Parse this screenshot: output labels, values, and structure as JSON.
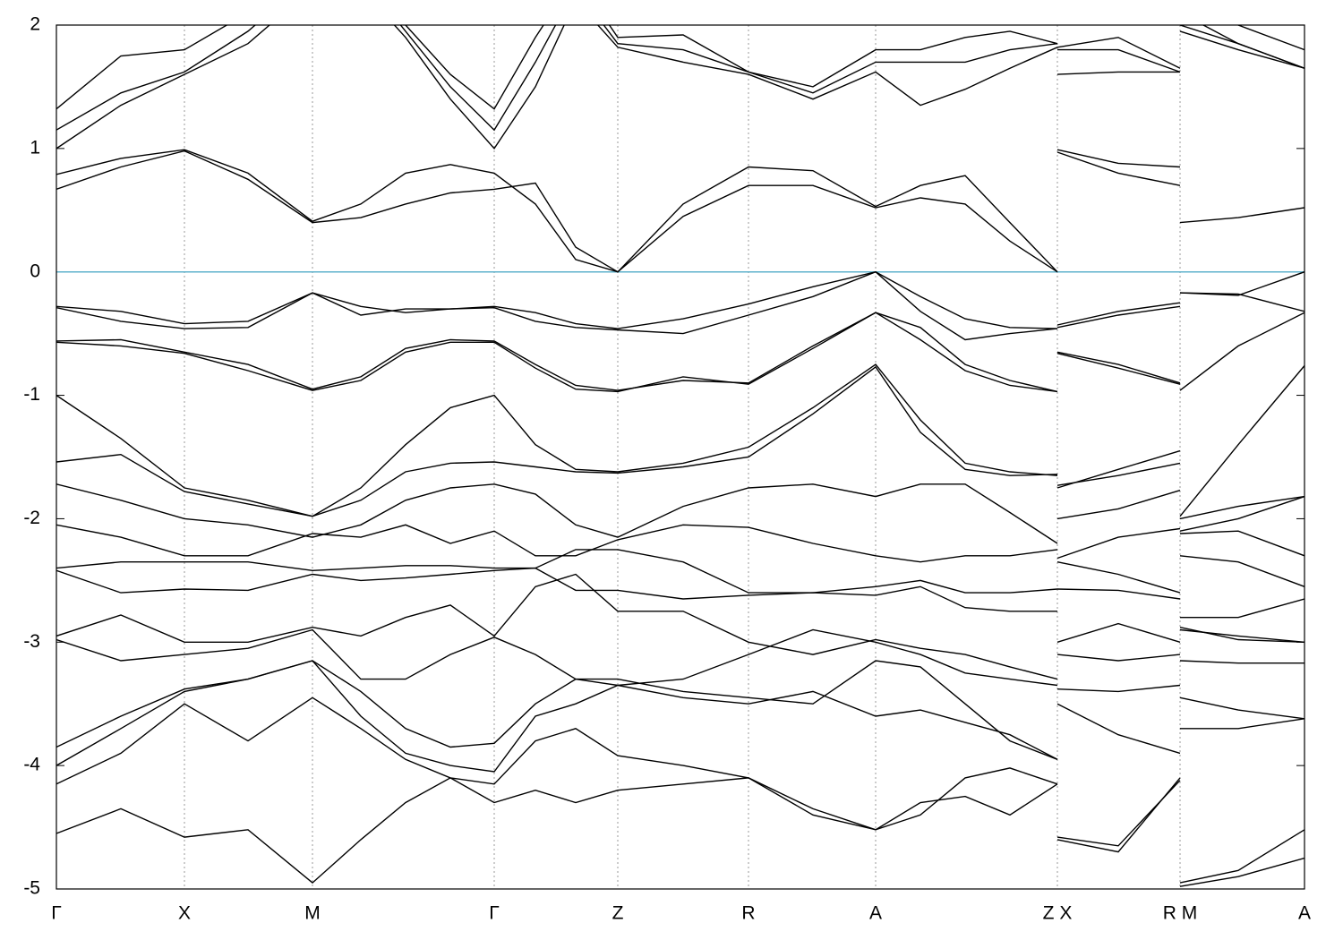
{
  "chart_data": {
    "type": "line",
    "x": [
      0,
      72,
      143,
      214,
      286,
      340,
      390,
      440,
      489,
      535,
      580,
      627,
      700,
      773,
      845,
      915,
      965,
      1015,
      1065,
      1118,
      1118,
      1118,
      1186,
      1255,
      1255,
      1255,
      1320,
      1394
    ],
    "xlim": [
      0,
      1394
    ],
    "xticks": [
      {
        "value": 0,
        "label": "Γ"
      },
      {
        "value": 143,
        "label": "X"
      },
      {
        "value": 286,
        "label": "M"
      },
      {
        "value": 489,
        "label": "Γ"
      },
      {
        "value": 627,
        "label": "Z"
      },
      {
        "value": 773,
        "label": "R"
      },
      {
        "value": 915,
        "label": "A"
      },
      {
        "value": 1118,
        "label": "Z X"
      },
      {
        "value": 1255,
        "label": "R M"
      },
      {
        "value": 1394,
        "label": "A"
      }
    ],
    "ylim": [
      -5,
      2
    ],
    "yticks": [
      -5,
      -4,
      -3,
      -2,
      -1,
      0,
      1,
      2
    ],
    "grid": true,
    "color": "#000000",
    "hline": {
      "value": 0,
      "color": "#5fb2cc"
    },
    "series": [
      {
        "values": [
          0.67,
          0.85,
          0.98,
          0.75,
          0.4,
          0.44,
          0.55,
          0.64,
          0.67,
          0.72,
          0.2,
          0.0,
          0.45,
          0.7,
          0.7,
          0.52,
          0.6,
          0.55,
          0.25,
          0.0,
          null,
          0.97,
          0.8,
          0.7,
          null,
          0.4,
          0.44,
          0.52
        ]
      },
      {
        "values": [
          0.79,
          0.92,
          0.99,
          0.8,
          0.41,
          0.55,
          0.8,
          0.87,
          0.8,
          0.55,
          0.1,
          0.0,
          0.55,
          0.85,
          0.82,
          0.53,
          0.7,
          0.78,
          0.4,
          0.0,
          null,
          0.99,
          0.88,
          0.85,
          null,
          2.0,
          1.85,
          1.65
        ]
      },
      {
        "values": [
          1.0,
          1.35,
          1.6,
          1.85,
          2.3,
          2.3,
          1.9,
          1.4,
          1.0,
          1.5,
          2.2,
          1.82,
          1.7,
          1.6,
          1.4,
          1.62,
          1.35,
          1.48,
          1.65,
          1.82,
          null,
          1.6,
          1.62,
          1.62,
          null,
          1.95,
          1.8,
          1.65
        ]
      },
      {
        "values": [
          1.15,
          1.45,
          1.62,
          1.95,
          2.4,
          2.4,
          1.95,
          1.5,
          1.15,
          1.7,
          2.3,
          1.85,
          1.8,
          1.62,
          1.45,
          1.7,
          1.7,
          1.7,
          1.8,
          1.85,
          null,
          1.8,
          1.8,
          1.62,
          null,
          2.1,
          1.85,
          1.65
        ]
      },
      {
        "values": [
          1.32,
          1.75,
          1.8,
          2.1,
          2.5,
          2.5,
          2.0,
          1.6,
          1.32,
          1.9,
          2.4,
          1.9,
          1.92,
          1.62,
          1.5,
          1.8,
          1.8,
          1.9,
          1.95,
          1.85,
          null,
          1.82,
          1.9,
          1.65,
          null,
          2.2,
          2.0,
          1.8
        ]
      },
      {
        "values": [
          -0.28,
          -0.32,
          -0.42,
          -0.4,
          -0.17,
          -0.28,
          -0.33,
          -0.3,
          -0.28,
          -0.33,
          -0.42,
          -0.46,
          -0.38,
          -0.26,
          -0.12,
          0.0,
          -0.2,
          -0.38,
          -0.45,
          -0.46,
          null,
          -0.43,
          -0.32,
          -0.25,
          null,
          -0.17,
          -0.19,
          0.0
        ]
      },
      {
        "values": [
          -0.29,
          -0.4,
          -0.46,
          -0.45,
          -0.17,
          -0.35,
          -0.3,
          -0.3,
          -0.29,
          -0.4,
          -0.45,
          -0.47,
          -0.5,
          -0.35,
          -0.2,
          0.0,
          -0.32,
          -0.55,
          -0.5,
          -0.46,
          null,
          -0.45,
          -0.35,
          -0.28,
          null,
          -0.17,
          -0.18,
          -0.32
        ]
      },
      {
        "values": [
          -0.56,
          -0.55,
          -0.65,
          -0.75,
          -0.95,
          -0.85,
          -0.62,
          -0.55,
          -0.56,
          -0.75,
          -0.92,
          -0.96,
          -0.88,
          -0.9,
          -0.6,
          -0.33,
          -0.55,
          -0.8,
          -0.92,
          -0.97,
          null,
          -0.65,
          -0.75,
          -0.9,
          null,
          -0.96,
          -0.6,
          -0.33
        ]
      },
      {
        "values": [
          -0.57,
          -0.6,
          -0.66,
          -0.8,
          -0.96,
          -0.88,
          -0.65,
          -0.57,
          -0.57,
          -0.78,
          -0.95,
          -0.97,
          -0.85,
          -0.91,
          -0.62,
          -0.33,
          -0.45,
          -0.75,
          -0.88,
          -0.97,
          null,
          -0.66,
          -0.78,
          -0.91,
          null,
          -1.98,
          -1.4,
          -0.76
        ]
      },
      {
        "values": [
          -1.0,
          -1.35,
          -1.75,
          -1.85,
          -1.98,
          -1.75,
          -1.4,
          -1.1,
          -1.0,
          -1.4,
          -1.6,
          -1.62,
          -1.55,
          -1.42,
          -1.1,
          -0.75,
          -1.2,
          -1.55,
          -1.62,
          -1.65,
          null,
          -1.75,
          -1.6,
          -1.45,
          null,
          -2.0,
          -1.9,
          -1.82
        ]
      },
      {
        "values": [
          -1.54,
          -1.48,
          -1.78,
          -1.88,
          -1.98,
          -1.85,
          -1.62,
          -1.55,
          -1.54,
          -1.58,
          -1.62,
          -1.63,
          -1.58,
          -1.5,
          -1.15,
          -0.77,
          -1.3,
          -1.6,
          -1.65,
          -1.64,
          null,
          -1.73,
          -1.65,
          -1.55,
          null,
          -2.1,
          -2.0,
          -1.82
        ]
      },
      {
        "values": [
          -1.72,
          -1.85,
          -2.0,
          -2.05,
          -2.15,
          -2.05,
          -1.85,
          -1.75,
          -1.72,
          -1.8,
          -2.05,
          -2.15,
          -1.9,
          -1.75,
          -1.72,
          -1.82,
          -1.72,
          -1.72,
          -1.95,
          -2.2,
          null,
          -2.0,
          -1.92,
          -1.77,
          null,
          -2.12,
          -2.1,
          -2.3
        ]
      },
      {
        "values": [
          -2.05,
          -2.15,
          -2.3,
          -2.3,
          -2.12,
          -2.15,
          -2.05,
          -2.2,
          -2.1,
          -2.3,
          -2.3,
          -2.17,
          -2.05,
          -2.07,
          -2.2,
          -2.3,
          -2.35,
          -2.3,
          -2.3,
          -2.25,
          null,
          -2.32,
          -2.15,
          -2.08,
          null,
          -2.3,
          -2.35,
          -2.55
        ]
      },
      {
        "values": [
          -2.4,
          -2.35,
          -2.35,
          -2.35,
          -2.42,
          -2.4,
          -2.38,
          -2.38,
          -2.4,
          -2.4,
          -2.25,
          -2.25,
          -2.35,
          -2.6,
          -2.6,
          -2.55,
          -2.5,
          -2.6,
          -2.6,
          -2.57,
          null,
          -2.35,
          -2.45,
          -2.6,
          null,
          -2.8,
          -2.8,
          -2.65
        ]
      },
      {
        "values": [
          -2.42,
          -2.6,
          -2.57,
          -2.58,
          -2.45,
          -2.5,
          -2.48,
          -2.45,
          -2.42,
          -2.4,
          -2.58,
          -2.58,
          -2.65,
          -2.62,
          -2.6,
          -2.62,
          -2.55,
          -2.72,
          -2.75,
          -2.75,
          null,
          -2.57,
          -2.58,
          -2.65,
          null,
          -2.9,
          -2.95,
          -3.0
        ]
      },
      {
        "values": [
          -2.95,
          -2.78,
          -3.0,
          -3.0,
          -2.88,
          -2.95,
          -2.8,
          -2.7,
          -2.95,
          -2.55,
          -2.45,
          -2.75,
          -2.75,
          -3.0,
          -3.1,
          -2.98,
          -3.05,
          -3.1,
          -3.2,
          -3.3,
          null,
          -3.0,
          -2.85,
          -3.0,
          null,
          -2.88,
          -2.98,
          -3.0
        ]
      },
      {
        "values": [
          -2.98,
          -3.15,
          -3.1,
          -3.05,
          -2.9,
          -3.3,
          -3.3,
          -3.1,
          -2.96,
          -3.1,
          -3.3,
          -3.35,
          -3.3,
          -3.1,
          -2.9,
          -3.0,
          -3.1,
          -3.25,
          -3.3,
          -3.35,
          null,
          -3.1,
          -3.15,
          -3.1,
          null,
          -3.15,
          -3.17,
          -3.17
        ]
      },
      {
        "values": [
          -3.85,
          -3.6,
          -3.38,
          -3.3,
          -3.15,
          -3.4,
          -3.7,
          -3.85,
          -3.82,
          -3.5,
          -3.3,
          -3.3,
          -3.4,
          -3.45,
          -3.5,
          -3.15,
          -3.2,
          -3.5,
          -3.8,
          -3.95,
          null,
          -3.38,
          -3.4,
          -3.35,
          null,
          -3.45,
          -3.55,
          -3.62
        ]
      },
      {
        "values": [
          -4.0,
          -3.7,
          -3.4,
          -3.3,
          -3.15,
          -3.6,
          -3.9,
          -4.0,
          -4.05,
          -3.6,
          -3.5,
          -3.35,
          -3.45,
          -3.5,
          -3.4,
          -3.6,
          -3.55,
          -3.65,
          -3.75,
          -3.95,
          null,
          -3.5,
          -3.75,
          -3.9,
          null,
          -3.7,
          -3.7,
          -3.62
        ]
      },
      {
        "values": [
          -4.15,
          -3.9,
          -3.5,
          -3.8,
          -3.45,
          -3.7,
          -3.95,
          -4.1,
          -4.15,
          -3.8,
          -3.7,
          -3.92,
          -4.0,
          -4.1,
          -4.4,
          -4.52,
          -4.4,
          -4.1,
          -4.02,
          -4.15,
          null,
          -4.58,
          -4.65,
          -4.12,
          null,
          -4.95,
          -4.85,
          -4.52
        ]
      },
      {
        "values": [
          -4.55,
          -4.35,
          -4.58,
          -4.52,
          -4.95,
          -4.6,
          -4.3,
          -4.1,
          -4.3,
          -4.2,
          -4.3,
          -4.2,
          -4.15,
          -4.1,
          -4.35,
          -4.52,
          -4.3,
          -4.25,
          -4.4,
          -4.15,
          null,
          -4.6,
          -4.7,
          -4.1,
          null,
          -4.98,
          -4.9,
          -4.75
        ]
      }
    ]
  }
}
